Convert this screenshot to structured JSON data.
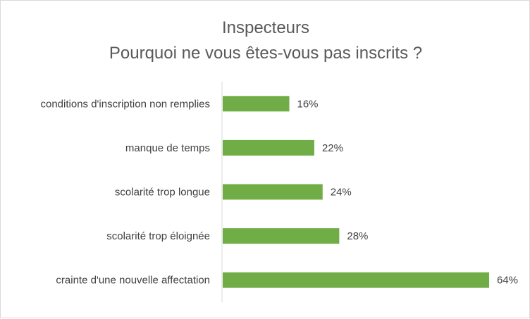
{
  "chart_data": {
    "type": "bar",
    "orientation": "horizontal",
    "title": "Inspecteurs",
    "subtitle": "Pourquoi ne vous êtes-vous pas inscrits ?",
    "categories": [
      "conditions d'inscription non remplies",
      "manque de temps",
      "scolarité trop longue",
      "scolarité trop éloignée",
      "crainte d'une nouvelle affectation"
    ],
    "values": [
      16,
      22,
      24,
      28,
      64
    ],
    "value_labels": [
      "16%",
      "22%",
      "24%",
      "28%",
      "64%"
    ],
    "unit": "%",
    "xlim": [
      0,
      64
    ],
    "grid": false,
    "legend": "none",
    "bar_color": "#70ad47"
  }
}
